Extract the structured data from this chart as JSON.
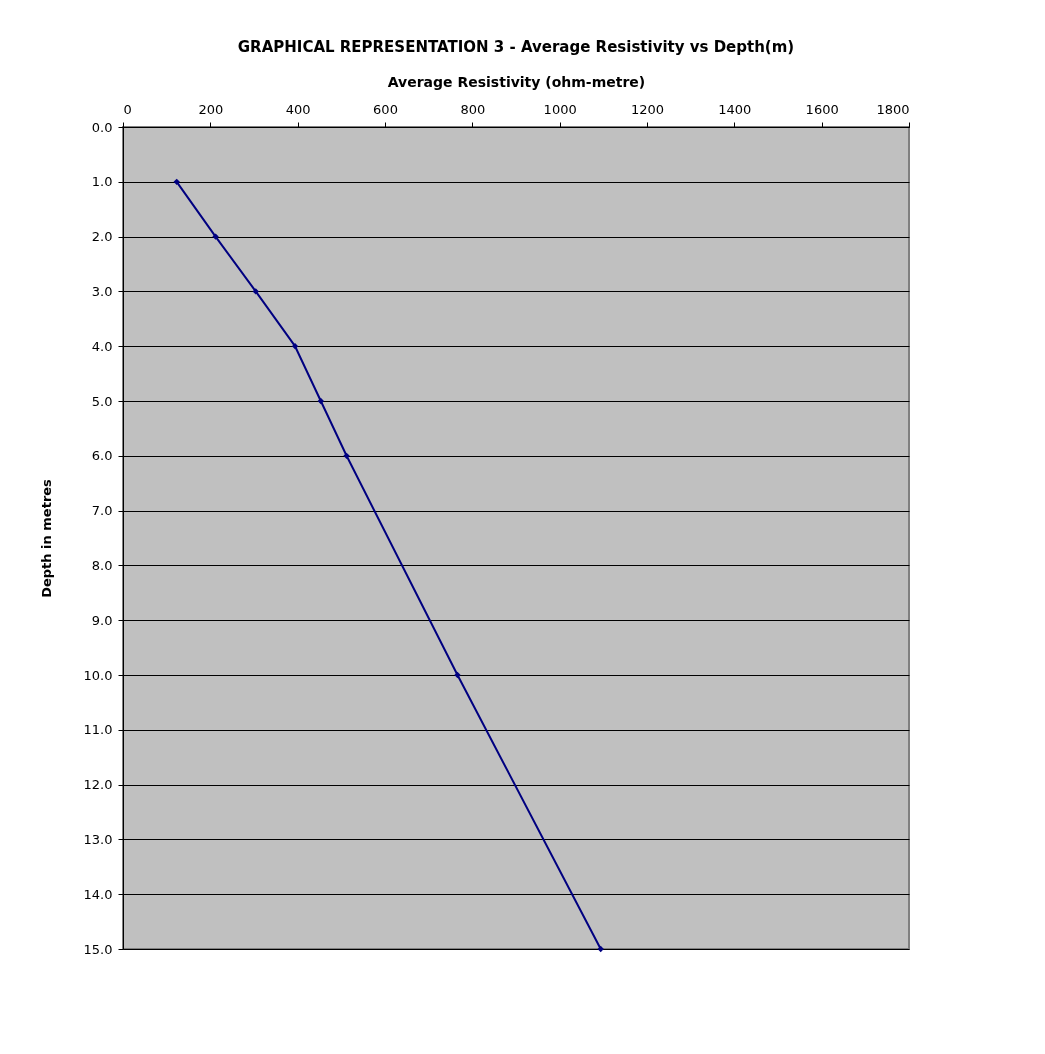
{
  "chart_data": {
    "type": "line",
    "title": "GRAPHICAL REPRESENTATION 3 - Average Resistivity vs Depth(m)",
    "xlabel": "Average Resistivity (ohm-metre)",
    "ylabel": "Depth in metres",
    "x": [
      123,
      212,
      304,
      394,
      453,
      512,
      766,
      1094
    ],
    "series": [
      {
        "color": "#000080",
        "values": [
          1,
          2,
          3,
          4,
          5,
          6,
          10,
          15
        ]
      }
    ],
    "xlim": [
      0,
      1800
    ],
    "xticks": [
      0,
      200,
      400,
      600,
      800,
      1000,
      1200,
      1400,
      1600,
      1800
    ],
    "ylim": [
      15,
      0
    ],
    "yticks": [
      {
        "value": 0,
        "label": "0.0"
      },
      {
        "value": 1,
        "label": "1.0"
      },
      {
        "value": 2,
        "label": "2.0"
      },
      {
        "value": 3,
        "label": "3.0"
      },
      {
        "value": 4,
        "label": "4.0"
      },
      {
        "value": 5,
        "label": "5.0"
      },
      {
        "value": 6,
        "label": "6.0"
      },
      {
        "value": 7,
        "label": "7.0"
      },
      {
        "value": 8,
        "label": "8.0"
      },
      {
        "value": 9,
        "label": "9.0"
      },
      {
        "value": 10,
        "label": "10.0"
      },
      {
        "value": 11,
        "label": "11.0"
      },
      {
        "value": 12,
        "label": "12.0"
      },
      {
        "value": 13,
        "label": "13.0"
      },
      {
        "value": 14,
        "label": "14.0"
      },
      {
        "value": 15,
        "label": "15.0"
      }
    ],
    "grid": "y",
    "marker": "diamond",
    "line_style": "solid"
  }
}
